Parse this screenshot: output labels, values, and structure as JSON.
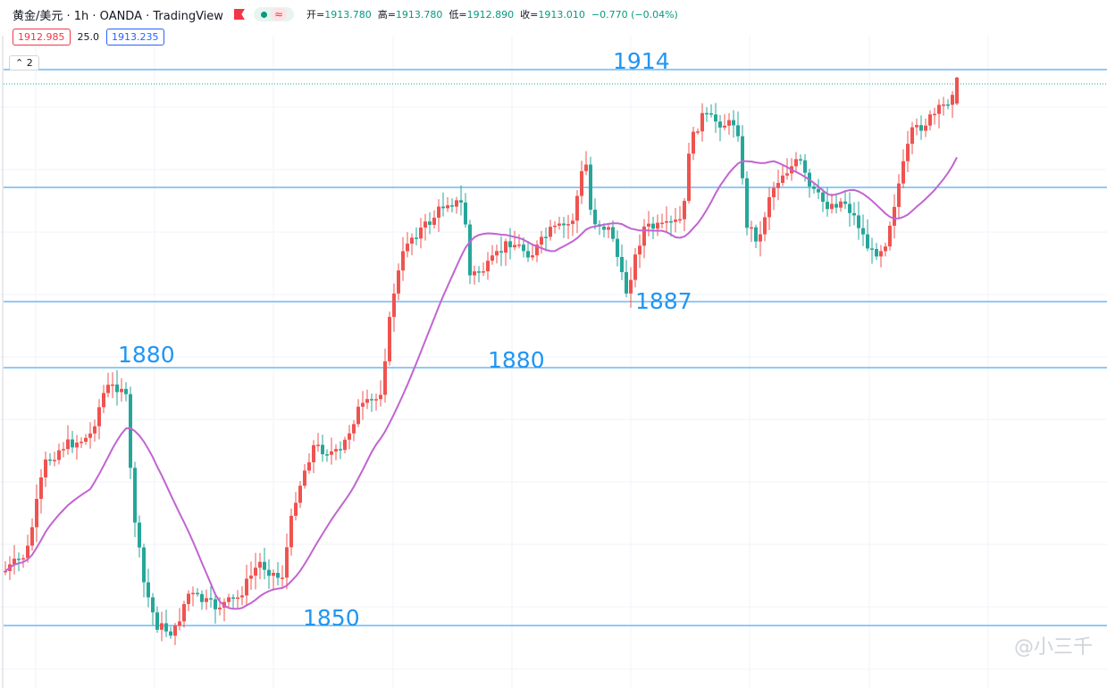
{
  "header": {
    "symbol": "黄金/美元 · 1h · OANDA · TradingView",
    "pill_wave": "≈",
    "ohlc": [
      {
        "k": "开=",
        "v": "1913.780"
      },
      {
        "k": "高=",
        "v": "1913.780"
      },
      {
        "k": "低=",
        "v": "1912.890"
      },
      {
        "k": "收=",
        "v": "1913.010"
      },
      {
        "k": "",
        "v": "−0.770 (−0.04%)"
      }
    ]
  },
  "trade": {
    "sell": "1912.985",
    "spread": "25.0",
    "buy": "1913.235"
  },
  "indicator": {
    "label": "2"
  },
  "levels": [
    "1914",
    "1887",
    "1880",
    "1880",
    "1850"
  ],
  "watermark": "@小三千",
  "colors": {
    "up": "#ef5350",
    "down": "#26a69a",
    "ma": "#c264d1",
    "level": "#2196f3",
    "grid": "#f0f3fa"
  },
  "chart_data": {
    "type": "candlestick",
    "instrument": "黄金/美元",
    "timeframe": "1h",
    "horizontal_levels": [
      1914,
      1887,
      1880,
      1850
    ],
    "last_close": 1913.01,
    "moving_average": true
  }
}
